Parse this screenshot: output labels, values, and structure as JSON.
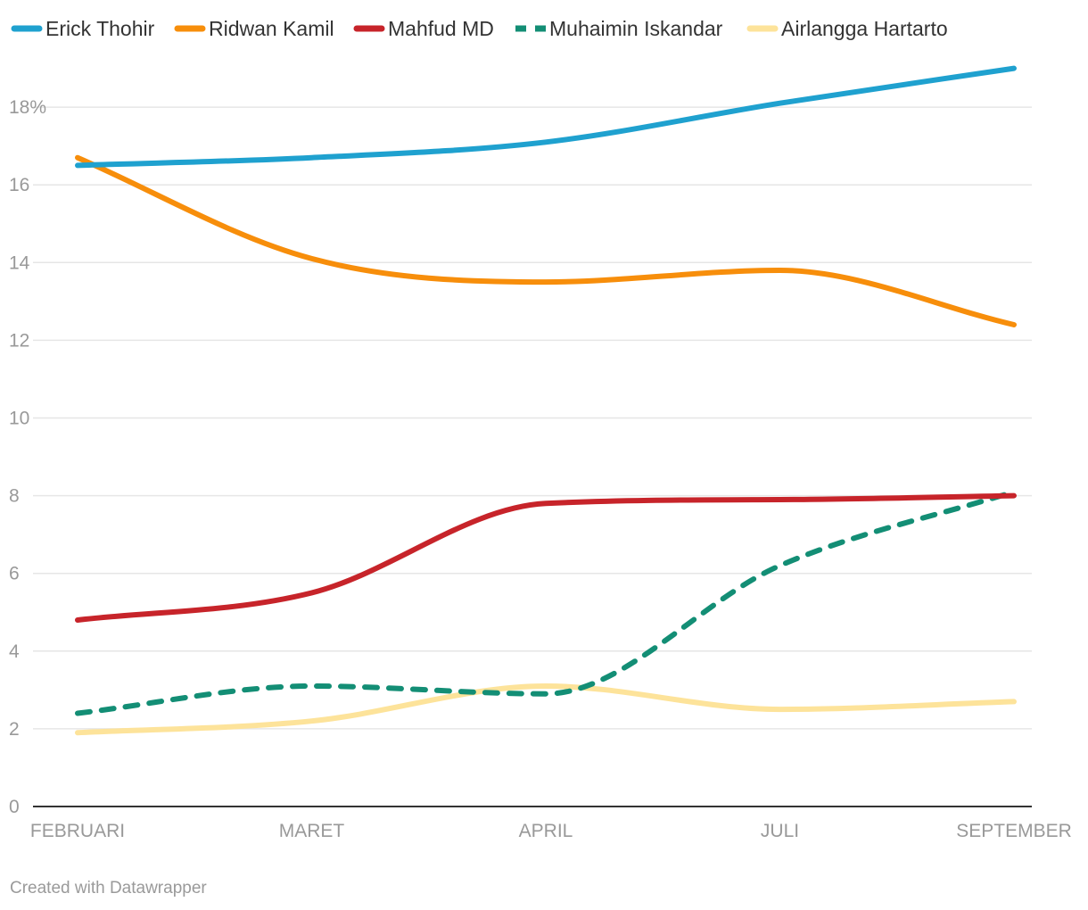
{
  "chart_data": {
    "type": "line",
    "title": "",
    "xlabel": "",
    "ylabel": "",
    "categories": [
      "FEBRUARI",
      "MARET",
      "APRIL",
      "JULI",
      "SEPTEMBER"
    ],
    "x_positions": [
      0,
      1,
      2,
      3,
      4
    ],
    "ylim": [
      0,
      18
    ],
    "yticks": [
      0,
      2,
      4,
      6,
      8,
      10,
      12,
      14,
      16,
      18
    ],
    "ytick_labels": [
      "0",
      "2",
      "4",
      "6",
      "8",
      "10",
      "12",
      "14",
      "16",
      "18%"
    ],
    "grid": true,
    "legend_position": "top-left",
    "series": [
      {
        "name": "Erick Thohir",
        "color": "#1fa1cf",
        "dashed": false,
        "values": [
          16.5,
          16.7,
          17.1,
          18.1,
          19.0
        ]
      },
      {
        "name": "Ridwan Kamil",
        "color": "#f78e0b",
        "dashed": false,
        "values": [
          16.7,
          14.1,
          13.5,
          13.8,
          12.4
        ]
      },
      {
        "name": "Mahfud MD",
        "color": "#c7242a",
        "dashed": false,
        "values": [
          4.8,
          5.5,
          7.8,
          7.9,
          8.0
        ]
      },
      {
        "name": "Muhaimin Iskandar",
        "color": "#138e75",
        "dashed": true,
        "values": [
          2.4,
          3.1,
          2.9,
          6.2,
          8.1
        ]
      },
      {
        "name": "Airlangga Hartarto",
        "color": "#fde39a",
        "dashed": false,
        "values": [
          1.9,
          2.2,
          3.1,
          2.5,
          2.7
        ]
      }
    ]
  },
  "credit": "Created with Datawrapper"
}
